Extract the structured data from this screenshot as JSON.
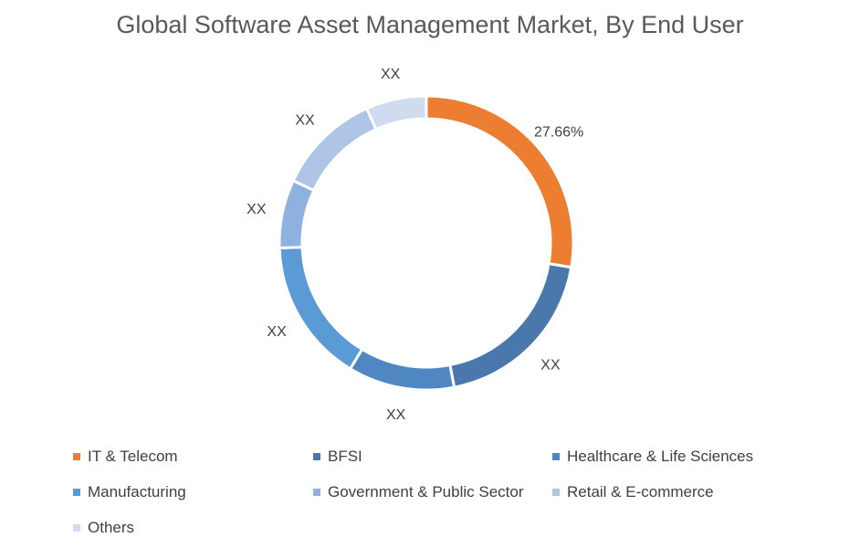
{
  "chart_data": {
    "type": "pie",
    "subtype": "donut",
    "title": "Global Software Asset Management Market, By End User",
    "categories": [
      "IT & Telecom",
      "BFSI",
      "Healthcare & Life Sciences",
      "Manufacturing",
      "Government & Public Sector",
      "Retail & E-commerce",
      "Others"
    ],
    "values": [
      27.66,
      19.3,
      11.7,
      15.8,
      7.5,
      11.4,
      6.64
    ],
    "data_labels": [
      "27.66%",
      "XX",
      "XX",
      "XX",
      "XX",
      "XX",
      "XX"
    ],
    "colors": [
      "#ED7D31",
      "#4A78AD",
      "#4F87C3",
      "#5B9BD5",
      "#8EB1DF",
      "#AFC5E6",
      "#CFDBEE"
    ],
    "legend_placement": "bottom"
  }
}
